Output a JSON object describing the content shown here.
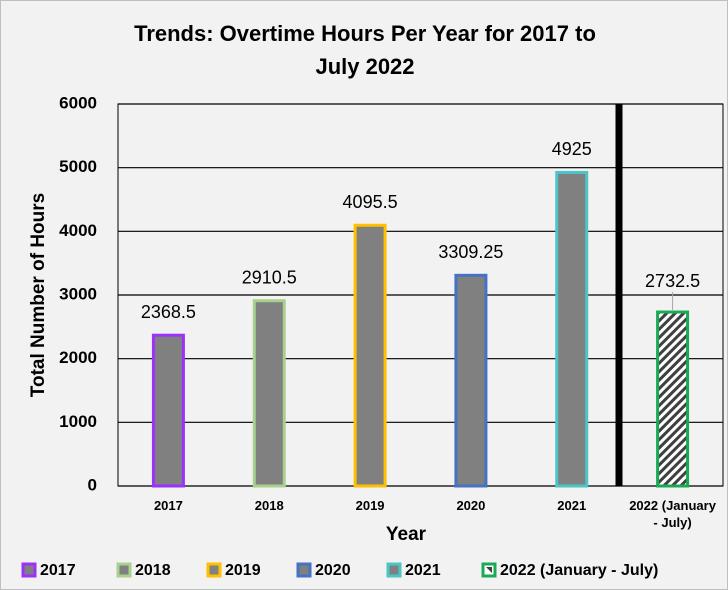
{
  "chart_data": {
    "type": "bar",
    "title": "Trends: Overtime Hours Per Year for 2017 to July 2022",
    "x_label": "Year",
    "y_label": "Total Number of Hours",
    "categories": [
      "2017",
      "2018",
      "2019",
      "2020",
      "2021",
      "2022 (January - July)"
    ],
    "values": [
      2368.5,
      2910.5,
      4095.5,
      3309.25,
      4925,
      2732.5
    ],
    "colors": [
      "#9b30ff",
      "#a9d18e",
      "#ffc000",
      "#4472c4",
      "#4bc6c6",
      "#1aaa55"
    ],
    "bar_fill": "#808080",
    "ylim": [
      0,
      6000
    ],
    "yticks": [
      0,
      1000,
      2000,
      3000,
      4000,
      5000,
      6000
    ],
    "grid": true,
    "legend": "bottom"
  }
}
